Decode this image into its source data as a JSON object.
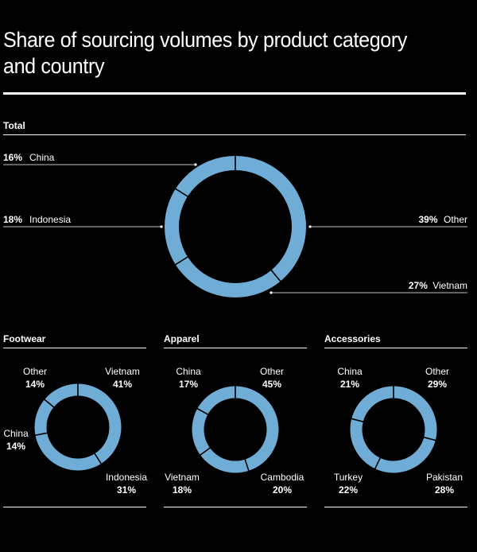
{
  "title": "Share of sourcing volumes by product category and country",
  "colors": {
    "ring": "#6fadd6",
    "divider": "#000000",
    "text": "#ffffff",
    "background": "#000000"
  },
  "chart_data": [
    {
      "type": "pie",
      "variant": "donut",
      "title": "Total",
      "segments_clockwise_from_top": [
        {
          "label": "Other",
          "value": 39
        },
        {
          "label": "Vietnam",
          "value": 27
        },
        {
          "label": "Indonesia",
          "value": 18
        },
        {
          "label": "China",
          "value": 16
        }
      ]
    },
    {
      "type": "pie",
      "variant": "donut",
      "title": "Footwear",
      "segments_clockwise_from_top": [
        {
          "label": "Vietnam",
          "value": 41
        },
        {
          "label": "Indonesia",
          "value": 31
        },
        {
          "label": "China",
          "value": 14
        },
        {
          "label": "Other",
          "value": 14
        }
      ]
    },
    {
      "type": "pie",
      "variant": "donut",
      "title": "Apparel",
      "segments_clockwise_from_top": [
        {
          "label": "Other",
          "value": 45
        },
        {
          "label": "Cambodia",
          "value": 20
        },
        {
          "label": "Vietnam",
          "value": 18
        },
        {
          "label": "China",
          "value": 17
        }
      ]
    },
    {
      "type": "pie",
      "variant": "donut",
      "title": "Accessories",
      "segments_clockwise_from_top": [
        {
          "label": "Other",
          "value": 29
        },
        {
          "label": "Pakistan",
          "value": 28
        },
        {
          "label": "Turkey",
          "value": 22
        },
        {
          "label": "China",
          "value": 21
        }
      ]
    }
  ]
}
